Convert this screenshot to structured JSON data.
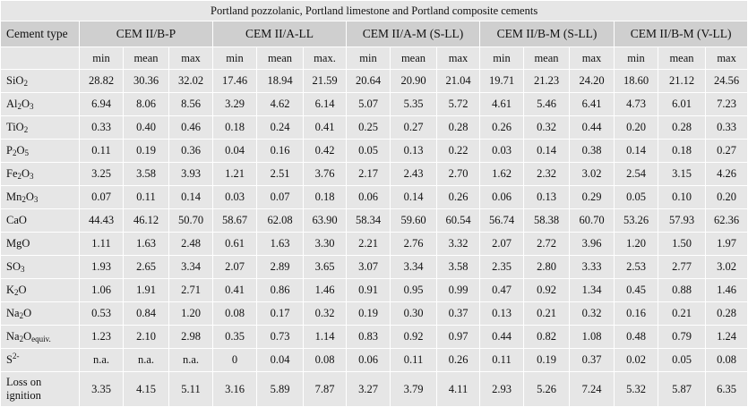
{
  "caption": "Portland pozzolanic, Portland limestone and Portland composite cements",
  "header": {
    "first_col": "Cement type",
    "groups": [
      {
        "name": "CEM II/B-P",
        "subs": [
          "min",
          "mean",
          "max"
        ]
      },
      {
        "name": "CEM II/A-LL",
        "subs": [
          "min",
          "mean",
          "max."
        ]
      },
      {
        "name": "CEM II/A-M (S-LL)",
        "subs": [
          "min",
          "mean",
          "max"
        ]
      },
      {
        "name": "CEM II/B-M (S-LL)",
        "subs": [
          "min",
          "mean",
          "max"
        ]
      },
      {
        "name": "CEM II/B-M (V-LL)",
        "subs": [
          "min",
          "mean",
          "max"
        ]
      }
    ]
  },
  "rows": [
    {
      "parts": [
        [
          "SiO",
          ""
        ],
        [
          "2",
          "sub"
        ]
      ],
      "values": [
        "28.82",
        "30.36",
        "32.02",
        "17.46",
        "18.94",
        "21.59",
        "20.64",
        "20.90",
        "21.04",
        "19.71",
        "21.23",
        "24.20",
        "18.60",
        "21.12",
        "24.56"
      ]
    },
    {
      "parts": [
        [
          "Al",
          ""
        ],
        [
          "2",
          "sub"
        ],
        [
          "O",
          ""
        ],
        [
          "3",
          "sub"
        ]
      ],
      "values": [
        "6.94",
        "8.06",
        "8.56",
        "3.29",
        "4.62",
        "6.14",
        "5.07",
        "5.35",
        "5.72",
        "4.61",
        "5.46",
        "6.41",
        "4.73",
        "6.01",
        "7.23"
      ]
    },
    {
      "parts": [
        [
          "TiO",
          ""
        ],
        [
          "2",
          "sub"
        ]
      ],
      "values": [
        "0.33",
        "0.40",
        "0.46",
        "0.18",
        "0.24",
        "0.41",
        "0.25",
        "0.27",
        "0.28",
        "0.26",
        "0.32",
        "0.44",
        "0.20",
        "0.28",
        "0.33"
      ]
    },
    {
      "parts": [
        [
          "P",
          ""
        ],
        [
          "2",
          "sub"
        ],
        [
          "O",
          ""
        ],
        [
          "5",
          "sub"
        ]
      ],
      "values": [
        "0.11",
        "0.19",
        "0.36",
        "0.04",
        "0.16",
        "0.42",
        "0.05",
        "0.13",
        "0.22",
        "0.03",
        "0.14",
        "0.38",
        "0.14",
        "0.18",
        "0.27"
      ]
    },
    {
      "parts": [
        [
          "Fe",
          ""
        ],
        [
          "2",
          "sub"
        ],
        [
          "O",
          ""
        ],
        [
          "3",
          "sub"
        ]
      ],
      "values": [
        "3.25",
        "3.58",
        "3.93",
        "1.21",
        "2.51",
        "3.76",
        "2.17",
        "2.43",
        "2.70",
        "1.62",
        "2.32",
        "3.02",
        "2.54",
        "3.15",
        "4.26"
      ]
    },
    {
      "parts": [
        [
          "Mn",
          ""
        ],
        [
          "2",
          "sub"
        ],
        [
          "O",
          ""
        ],
        [
          "3",
          "sub"
        ]
      ],
      "values": [
        "0.07",
        "0.11",
        "0.14",
        "0.03",
        "0.07",
        "0.18",
        "0.06",
        "0.14",
        "0.26",
        "0.06",
        "0.13",
        "0.29",
        "0.05",
        "0.10",
        "0.20"
      ]
    },
    {
      "parts": [
        [
          "CaO",
          ""
        ]
      ],
      "values": [
        "44.43",
        "46.12",
        "50.70",
        "58.67",
        "62.08",
        "63.90",
        "58.34",
        "59.60",
        "60.54",
        "56.74",
        "58.38",
        "60.70",
        "53.26",
        "57.93",
        "62.36"
      ]
    },
    {
      "parts": [
        [
          "MgO",
          ""
        ]
      ],
      "values": [
        "1.11",
        "1.63",
        "2.48",
        "0.61",
        "1.63",
        "3.30",
        "2.21",
        "2.76",
        "3.32",
        "2.07",
        "2.72",
        "3.96",
        "1.20",
        "1.50",
        "1.97"
      ]
    },
    {
      "parts": [
        [
          "SO",
          ""
        ],
        [
          "3",
          "sub"
        ]
      ],
      "values": [
        "1.93",
        "2.65",
        "3.34",
        "2.07",
        "2.89",
        "3.65",
        "3.07",
        "3.34",
        "3.58",
        "2.35",
        "2.80",
        "3.33",
        "2.53",
        "2.77",
        "3.02"
      ]
    },
    {
      "parts": [
        [
          "K",
          ""
        ],
        [
          "2",
          "sub"
        ],
        [
          "O",
          ""
        ]
      ],
      "values": [
        "1.06",
        "1.91",
        "2.71",
        "0.41",
        "0.86",
        "1.46",
        "0.91",
        "0.95",
        "0.99",
        "0.47",
        "0.92",
        "1.34",
        "0.45",
        "0.88",
        "1.46"
      ]
    },
    {
      "parts": [
        [
          "Na",
          ""
        ],
        [
          "2",
          "sub"
        ],
        [
          "O",
          ""
        ]
      ],
      "values": [
        "0.53",
        "0.84",
        "1.20",
        "0.08",
        "0.17",
        "0.32",
        "0.19",
        "0.30",
        "0.37",
        "0.13",
        "0.21",
        "0.32",
        "0.16",
        "0.21",
        "0.28"
      ]
    },
    {
      "parts": [
        [
          "Na",
          ""
        ],
        [
          "2",
          "sub"
        ],
        [
          "O",
          ""
        ],
        [
          "equiv.",
          "sub"
        ]
      ],
      "values": [
        "1.23",
        "2.10",
        "2.98",
        "0.35",
        "0.73",
        "1.14",
        "0.83",
        "0.92",
        "0.97",
        "0.44",
        "0.82",
        "1.08",
        "0.48",
        "0.79",
        "1.24"
      ]
    },
    {
      "parts": [
        [
          "S",
          ""
        ],
        [
          "2-",
          "sup"
        ]
      ],
      "values": [
        "n.a.",
        "n.a.",
        "n.a.",
        "0",
        "0.04",
        "0.08",
        "0.06",
        "0.11",
        "0.26",
        "0.11",
        "0.19",
        "0.37",
        "0.02",
        "0.05",
        "0.08"
      ]
    },
    {
      "parts": [
        [
          "Loss on ignition",
          ""
        ]
      ],
      "tall": true,
      "values": [
        "3.35",
        "4.15",
        "5.11",
        "3.16",
        "5.89",
        "7.87",
        "3.27",
        "3.79",
        "4.11",
        "2.93",
        "5.26",
        "7.24",
        "5.32",
        "5.87",
        "6.35"
      ]
    }
  ]
}
